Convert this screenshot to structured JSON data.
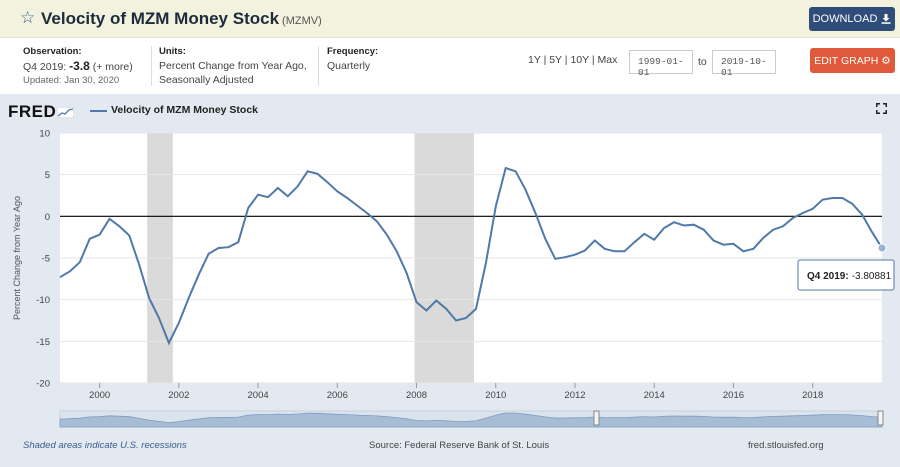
{
  "header": {
    "title": "Velocity of MZM Money Stock",
    "series_id": "(MZMV)",
    "download_label": "DOWNLOAD"
  },
  "observation": {
    "label": "Observation:",
    "period": "Q4 2019:",
    "value": "-3.8",
    "more": "(+ more)",
    "updated": "Updated: Jan 30, 2020"
  },
  "units": {
    "label": "Units:",
    "line1": "Percent Change from Year Ago,",
    "line2": "Seasonally Adjusted"
  },
  "frequency": {
    "label": "Frequency:",
    "value": "Quarterly"
  },
  "range_links": [
    "1Y",
    "5Y",
    "10Y",
    "Max"
  ],
  "date_range": {
    "start": "1999-01-01",
    "to_label": "to",
    "end": "2019-10-01"
  },
  "edit_graph_label": "EDIT GRAPH",
  "brand": "FRED",
  "footer": {
    "note": "Shaded areas indicate U.S. recessions",
    "source": "Source: Federal Reserve Bank of St. Louis",
    "url": "fred.stlouisfed.org"
  },
  "tooltip": {
    "label": "Q4 2019:",
    "value": "-3.80881"
  },
  "colors": {
    "series": "#4f79a8",
    "recession": "#dadada",
    "download": "#2f4d78",
    "edit": "#e0593a"
  },
  "chart_data": {
    "type": "line",
    "title": "Velocity of MZM Money Stock",
    "ylabel": "Percent Change from Year Ago",
    "xlabel": "",
    "xlim": [
      1999.0,
      2019.75
    ],
    "ylim": [
      -20,
      10
    ],
    "y_ticks": [
      10,
      5,
      0,
      -5,
      -10,
      -15,
      -20
    ],
    "x_ticks": [
      2000,
      2002,
      2004,
      2006,
      2008,
      2010,
      2012,
      2014,
      2016,
      2018
    ],
    "recessions": [
      [
        2001.2,
        2001.85
      ],
      [
        2007.95,
        2009.45
      ]
    ],
    "series": [
      {
        "name": "Velocity of MZM Money Stock",
        "x": [
          1999.0,
          1999.25,
          1999.5,
          1999.75,
          2000.0,
          2000.25,
          2000.5,
          2000.75,
          2001.0,
          2001.25,
          2001.5,
          2001.75,
          2002.0,
          2002.25,
          2002.5,
          2002.75,
          2003.0,
          2003.25,
          2003.5,
          2003.75,
          2004.0,
          2004.25,
          2004.5,
          2004.75,
          2005.0,
          2005.25,
          2005.5,
          2005.75,
          2006.0,
          2006.25,
          2006.5,
          2006.75,
          2007.0,
          2007.25,
          2007.5,
          2007.75,
          2008.0,
          2008.25,
          2008.5,
          2008.75,
          2009.0,
          2009.25,
          2009.5,
          2009.75,
          2010.0,
          2010.25,
          2010.5,
          2010.75,
          2011.0,
          2011.25,
          2011.5,
          2011.75,
          2012.0,
          2012.25,
          2012.5,
          2012.75,
          2013.0,
          2013.25,
          2013.5,
          2013.75,
          2014.0,
          2014.25,
          2014.5,
          2014.75,
          2015.0,
          2015.25,
          2015.5,
          2015.75,
          2016.0,
          2016.25,
          2016.5,
          2016.75,
          2017.0,
          2017.25,
          2017.5,
          2017.75,
          2018.0,
          2018.25,
          2018.5,
          2018.75,
          2019.0,
          2019.25,
          2019.5,
          2019.75
        ],
        "values": [
          -7.3,
          -6.6,
          -5.5,
          -2.7,
          -2.2,
          -0.3,
          -1.2,
          -2.3,
          -5.8,
          -9.8,
          -12.2,
          -15.2,
          -12.8,
          -9.8,
          -7.0,
          -4.5,
          -3.8,
          -3.7,
          -3.1,
          1.0,
          2.6,
          2.3,
          3.4,
          2.4,
          3.6,
          5.4,
          5.1,
          4.1,
          3.0,
          2.2,
          1.3,
          0.4,
          -0.6,
          -2.2,
          -4.2,
          -6.8,
          -10.3,
          -11.3,
          -10.1,
          -11.1,
          -12.5,
          -12.2,
          -11.1,
          -5.6,
          1.2,
          5.8,
          5.4,
          3.2,
          0.4,
          -2.7,
          -5.1,
          -4.9,
          -4.6,
          -4.1,
          -2.9,
          -3.9,
          -4.2,
          -4.2,
          -3.1,
          -2.1,
          -2.8,
          -1.4,
          -0.7,
          -1.1,
          -1.0,
          -1.6,
          -2.9,
          -3.4,
          -3.3,
          -4.2,
          -3.9,
          -2.6,
          -1.6,
          -1.2,
          -0.2,
          0.4,
          0.9,
          2.0,
          2.2,
          2.2,
          1.5,
          0.2,
          -1.9,
          -3.8
        ]
      }
    ]
  }
}
